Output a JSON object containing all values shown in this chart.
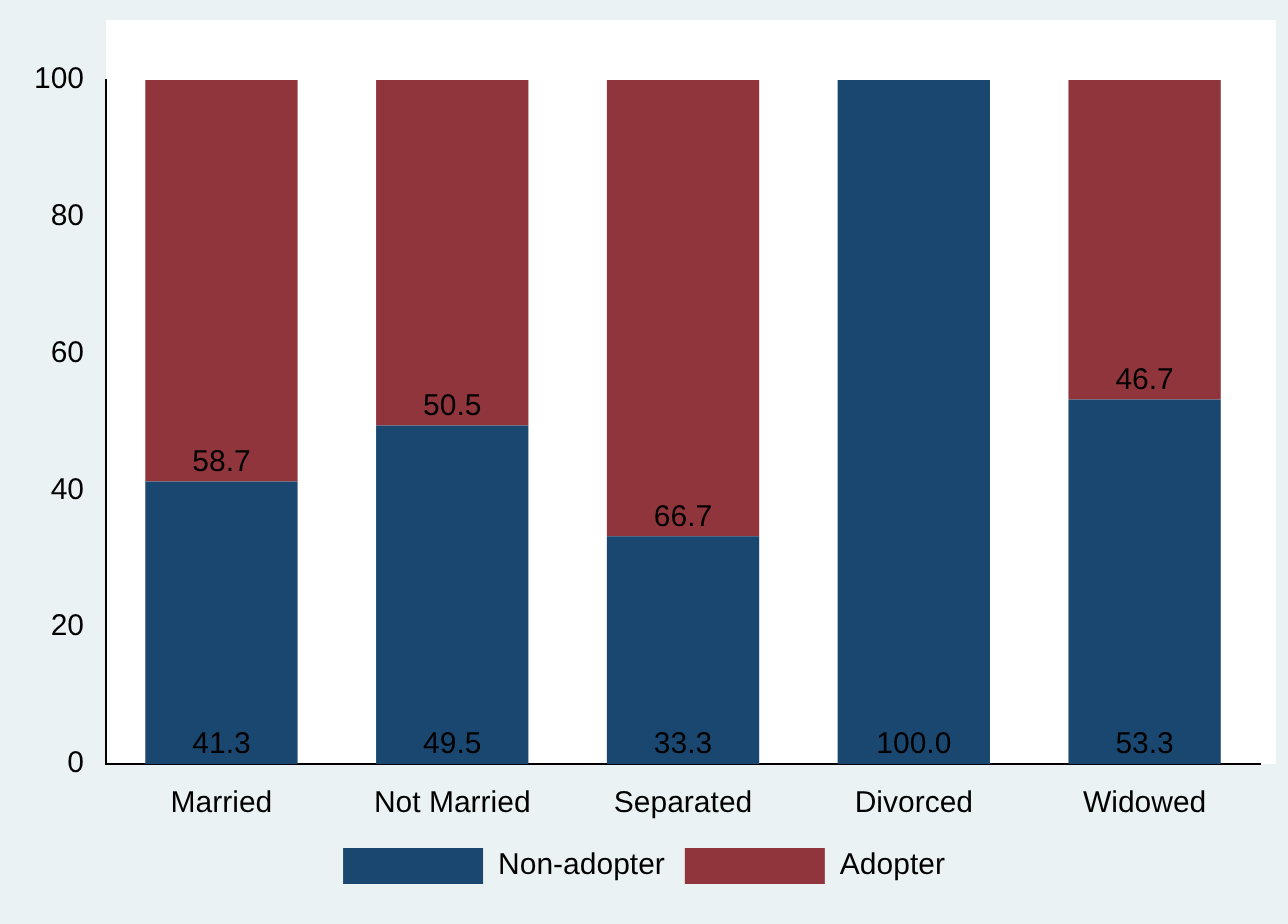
{
  "chart_data": {
    "type": "bar",
    "stacked": true,
    "categories": [
      "Married",
      "Not Married",
      "Separated",
      "Divorced",
      "Widowed"
    ],
    "series": [
      {
        "name": "Non-adopter",
        "color": "#1a476f",
        "values": [
          41.3,
          49.5,
          33.3,
          100.0,
          53.3
        ],
        "value_labels": [
          "41.3",
          "49.5",
          "33.3",
          "100.0",
          "53.3"
        ]
      },
      {
        "name": "Adopter",
        "color": "#90353b",
        "values": [
          58.7,
          50.5,
          66.7,
          0,
          46.7
        ],
        "value_labels": [
          "58.7",
          "50.5",
          "66.7",
          null,
          "46.7"
        ]
      }
    ],
    "ylim": [
      0,
      100
    ],
    "yticks": [
      0,
      20,
      40,
      60,
      80,
      100
    ],
    "grid": false,
    "legend": "bottom"
  }
}
